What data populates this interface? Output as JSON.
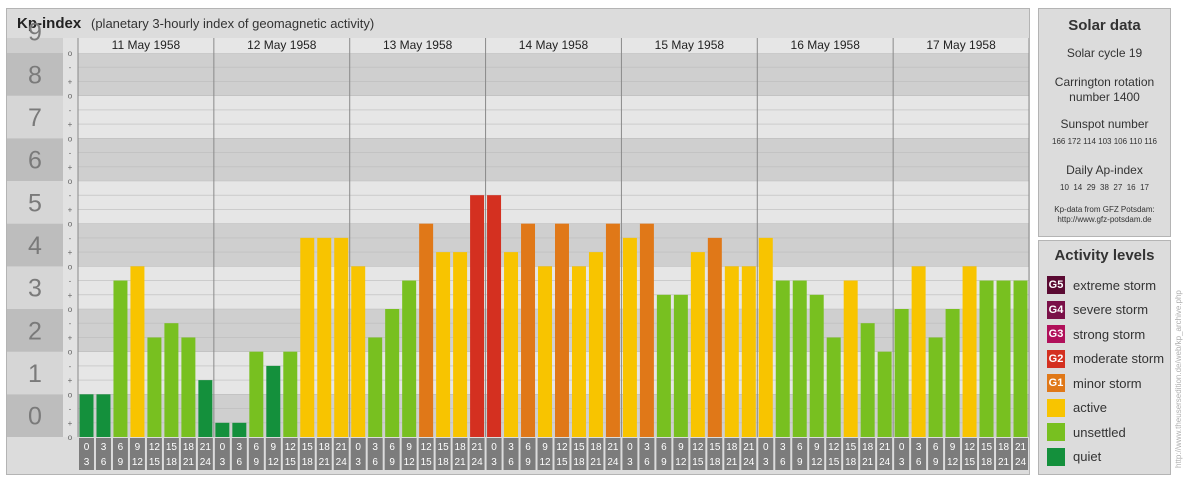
{
  "header": {
    "title": "Kp-index",
    "subtitle": "(planetary 3-hourly index of geomagnetic activity)"
  },
  "solar": {
    "title": "Solar data",
    "cycle": "Solar cycle 19",
    "carrington_line1": "Carrington rotation",
    "carrington_line2": "number 1400",
    "sunspot_title": "Sunspot number",
    "sunspot_values": "166 172 114 103 106 110 116",
    "ap_title": "Daily Ap-index",
    "ap_values": "10  14  29  38  27  16  17",
    "source_line1": "Kp-data from GFZ Potsdam:",
    "source_line2": "http://www.gfz-potsdam.de"
  },
  "activity": {
    "title": "Activity levels",
    "levels": [
      {
        "badge": "G5",
        "label": "extreme storm",
        "color": "#5a0a32"
      },
      {
        "badge": "G4",
        "label": "severe storm",
        "color": "#7a1048"
      },
      {
        "badge": "G3",
        "label": "strong storm",
        "color": "#b0105a"
      },
      {
        "badge": "G2",
        "label": "moderate storm",
        "color": "#d43020"
      },
      {
        "badge": "G1",
        "label": "minor storm",
        "color": "#e07818"
      },
      {
        "badge": "",
        "label": "active",
        "color": "#f8c400"
      },
      {
        "badge": "",
        "label": "unsettled",
        "color": "#78c020"
      },
      {
        "badge": "",
        "label": "quiet",
        "color": "#14903c"
      }
    ]
  },
  "watermark": "http://www.theusersedition.de/web/kp_archive.php",
  "chart_data": {
    "type": "bar",
    "title": "Kp-index",
    "ylim": [
      0,
      9
    ],
    "y_ticks": [
      "0",
      "1",
      "2",
      "3",
      "4",
      "5",
      "6",
      "7",
      "8",
      "9"
    ],
    "minor_tick_labels": [
      "o",
      "+",
      "-"
    ],
    "days": [
      "11 May 1958",
      "12 May 1958",
      "13 May 1958",
      "14 May 1958",
      "15 May 1958",
      "16 May 1958",
      "17 May 1958"
    ],
    "interval_start_labels": [
      "0",
      "3",
      "6",
      "9",
      "12",
      "15",
      "18",
      "21"
    ],
    "interval_end_labels": [
      "3",
      "6",
      "9",
      "12",
      "15",
      "18",
      "21",
      "24"
    ],
    "values": [
      1,
      1,
      3.667,
      4,
      2.333,
      2.667,
      2.333,
      1.333,
      0.333,
      0.333,
      2,
      1.667,
      2,
      4.667,
      4.667,
      4.667,
      4,
      2.333,
      3,
      3.667,
      5,
      4.333,
      4.333,
      5.667,
      5.667,
      4.333,
      5,
      4,
      5,
      4,
      4.333,
      5,
      4.667,
      5,
      3.333,
      3.333,
      4.333,
      4.667,
      4,
      4,
      4.667,
      3.667,
      3.667,
      3.333,
      2.333,
      3.667,
      2.667,
      2,
      3,
      4,
      2.333,
      3,
      4,
      3.667,
      3.667,
      3.667
    ],
    "colors": [
      "#14903c",
      "#14903c",
      "#78c020",
      "#f8c400",
      "#78c020",
      "#78c020",
      "#78c020",
      "#14903c",
      "#14903c",
      "#14903c",
      "#78c020",
      "#14903c",
      "#78c020",
      "#f8c400",
      "#f8c400",
      "#f8c400",
      "#f8c400",
      "#78c020",
      "#78c020",
      "#78c020",
      "#e07818",
      "#f8c400",
      "#f8c400",
      "#d43020",
      "#d43020",
      "#f8c400",
      "#e07818",
      "#f8c400",
      "#e07818",
      "#f8c400",
      "#f8c400",
      "#e07818",
      "#f8c400",
      "#e07818",
      "#78c020",
      "#78c020",
      "#f8c400",
      "#e07818",
      "#f8c400",
      "#f8c400",
      "#f8c400",
      "#78c020",
      "#78c020",
      "#78c020",
      "#78c020",
      "#f8c400",
      "#78c020",
      "#78c020",
      "#78c020",
      "#f8c400",
      "#78c020",
      "#78c020",
      "#f8c400",
      "#78c020",
      "#78c020",
      "#78c020"
    ],
    "grid": true,
    "legend": "right"
  }
}
